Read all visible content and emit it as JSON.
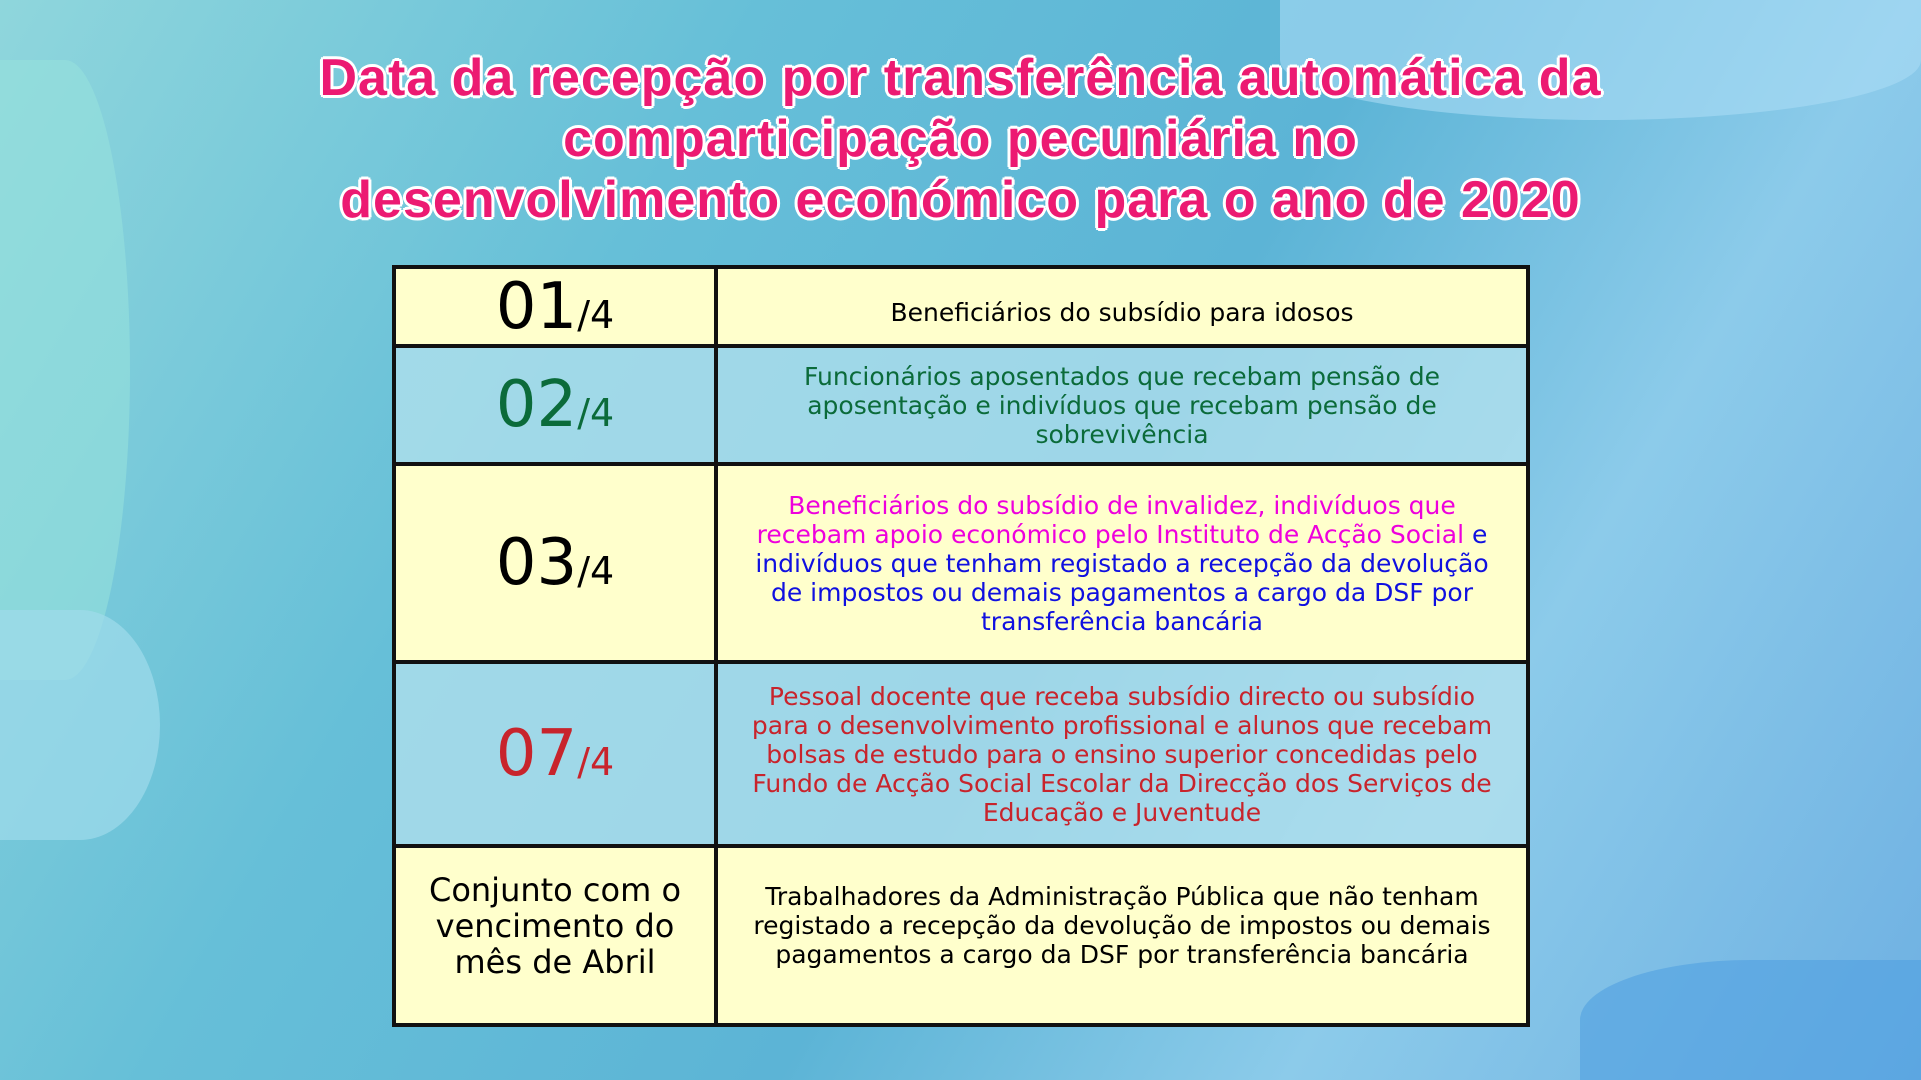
{
  "title": {
    "lines": [
      "Data da recepção por transferência automática da",
      "comparticipação pecuniária no",
      "desenvolvimento económico para o ano de 2020"
    ]
  },
  "colors": {
    "title": "#ec1a72",
    "row_yellow": "#ffffcc",
    "row_blue": "#b4e2ee",
    "black": "#000000",
    "green": "#0b6b3a",
    "magenta": "#ee00dd",
    "blue": "#1010e0",
    "red": "#c8242c"
  },
  "rows": [
    {
      "day": "01",
      "suffix": "/4",
      "text": "Beneficiários do subsídio para idosos"
    },
    {
      "day": "02",
      "suffix": "/4",
      "text": "Funcionários aposentados que recebam pensão de aposentação e indivíduos que recebam  pensão de sobrevivência"
    },
    {
      "day": "03",
      "suffix": "/4",
      "text_a": "Beneficiários do subsídio de invalidez, indivíduos que recebam apoio económico pelo Instituto de Acção Social",
      "text_b": "e indivíduos que tenham registado a recepção da devolução de impostos ou demais pagamentos a cargo da DSF por transferência bancária"
    },
    {
      "day": "07",
      "suffix": "/4",
      "text": "Pessoal docente que receba subsídio directo ou subsídio para o desenvolvimento profissional e alunos que recebam bolsas de estudo para o ensino superior concedidas pelo Fundo de Acção Social Escolar da Direcção  dos Serviços de Educação e Juventude"
    },
    {
      "day_text": "Conjunto com o vencimento do mês de Abril",
      "text": "Trabalhadores da Administração Pública que não tenham registado a recepção da devolução de impostos ou demais pagamentos a cargo da DSF por transferência bancária"
    }
  ]
}
